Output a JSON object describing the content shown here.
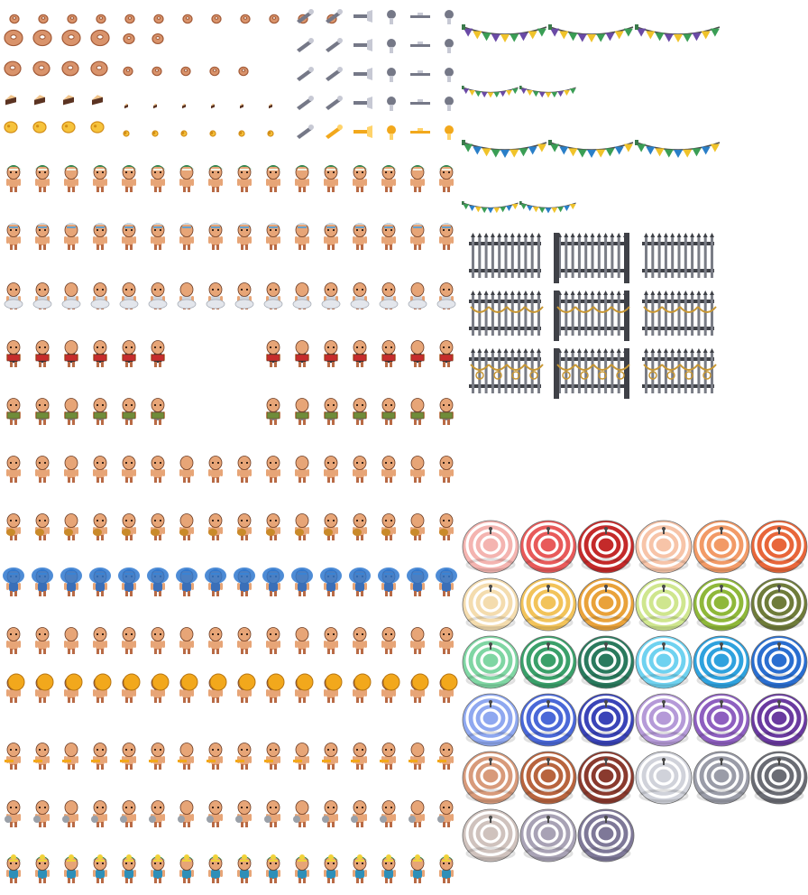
{
  "sheet": {
    "kind": "pixel-art sprite sheet",
    "background": "#ffffff"
  },
  "palette": {
    "skin": "#e7a577",
    "skin_dark": "#b86a45",
    "skin_light": "#f4c39b",
    "outline": "#6b3a22",
    "donut": "#d9936b",
    "donut_dark": "#a25a37",
    "cake_dark": "#5b3322",
    "cake_cream": "#f1c48a",
    "cheese": "#f6c33c",
    "cheese_dark": "#d38e17",
    "instrument_gray": "#757887",
    "instrument_light": "#c7c9d4",
    "brass": "#f2a81c",
    "fence": "#3f4147",
    "fence_light": "#7a7d86",
    "fence_gold": "#c89733",
    "bunting_line": "#4d4d4d"
  },
  "food_rows": [
    {
      "row": "donuts-small",
      "item": "donut"
    },
    {
      "row": "donuts-large",
      "item": "donut"
    },
    {
      "row": "donuts-medium",
      "item": "donut"
    },
    {
      "row": "cake-slices",
      "item": "cake"
    },
    {
      "row": "cheese-rounds",
      "item": "cheese"
    }
  ],
  "character_rows": [
    {
      "row": 1,
      "costume": "feather-headdress",
      "hair": "#2f8a52",
      "accent": "#f3efe2",
      "garment": "#e7a577"
    },
    {
      "row": 2,
      "costume": "white-feather-crown",
      "hair": "#c9e0ee",
      "accent": "#6aa0c8",
      "garment": "#e7a577"
    },
    {
      "row": 3,
      "costume": "silver-skirt",
      "hair": "none",
      "accent": "#e3e6ec",
      "garment": "#cfd4dc"
    },
    {
      "row": 4,
      "costume": "red-vest-accordion",
      "hair": "none",
      "accent": "#c62c2c",
      "garment": "#2c2f3a"
    },
    {
      "row": 5,
      "costume": "grey-accordion",
      "hair": "none",
      "accent": "#6f8c3a",
      "garment": "#8a8f98"
    },
    {
      "row": 6,
      "costume": "plain",
      "hair": "none",
      "accent": "#e7a577",
      "garment": "#e7a577"
    },
    {
      "row": 7,
      "costume": "guitar",
      "hair": "none",
      "accent": "#c98a2a",
      "garment": "#e7a577"
    },
    {
      "row": 8,
      "costume": "blue-feathers",
      "hair": "#2f78cf",
      "accent": "#7cc1f0",
      "garment": "#3b6fb8"
    },
    {
      "row": 9,
      "costume": "plain",
      "hair": "none",
      "accent": "#e7a577",
      "garment": "#e7a577"
    },
    {
      "row": 10,
      "costume": "sousaphone",
      "hair": "none",
      "accent": "#f2a81c",
      "garment": "#e7a577"
    },
    {
      "row": 11,
      "costume": "trumpet",
      "hair": "none",
      "accent": "#f2a81c",
      "garment": "#e7a577"
    },
    {
      "row": 12,
      "costume": "tambourine",
      "hair": "none",
      "accent": "#9aa0a8",
      "garment": "#e7a577"
    },
    {
      "row": 13,
      "costume": "flower-crown",
      "hair": "#3a9a5b",
      "accent": "#f0d23a",
      "garment": "#2e8fb8"
    }
  ],
  "bunting_rows": [
    {
      "flags": [
        "#6a4aa6",
        "#f0c32a",
        "#3a9e55"
      ]
    },
    {
      "flags": [
        "#6a4aa6",
        "#f0c32a",
        "#3a9e55"
      ]
    },
    {
      "flags": [
        "#3a9e55",
        "#2a7fc8",
        "#f0c32a"
      ]
    },
    {
      "flags": [
        "#3a9e55",
        "#2a7fc8",
        "#f0c32a"
      ]
    }
  ],
  "umbrellas": [
    {
      "base": "#f4b4b0",
      "stripe": "#ffffff"
    },
    {
      "base": "#e85a5a",
      "stripe": "#ffffff"
    },
    {
      "base": "#c42a2a",
      "stripe": "#ffffff"
    },
    {
      "base": "#f7c4a8",
      "stripe": "#ffffff"
    },
    {
      "base": "#f29a66",
      "stripe": "#ffffff"
    },
    {
      "base": "#e8663a",
      "stripe": "#ffffff"
    },
    {
      "base": "#f4dcae",
      "stripe": "#ffffff"
    },
    {
      "base": "#f2c35a",
      "stripe": "#ffffff"
    },
    {
      "base": "#e9a23a",
      "stripe": "#ffffff"
    },
    {
      "base": "#cfe68e",
      "stripe": "#ffffff"
    },
    {
      "base": "#8fb83a",
      "stripe": "#ffffff"
    },
    {
      "base": "#6f7c3a",
      "stripe": "#ffffff"
    },
    {
      "base": "#7fd6a3",
      "stripe": "#ffffff"
    },
    {
      "base": "#3aa06a",
      "stripe": "#ffffff"
    },
    {
      "base": "#2a7a5e",
      "stripe": "#ffffff"
    },
    {
      "base": "#6fd2f0",
      "stripe": "#ffffff"
    },
    {
      "base": "#2fa2de",
      "stripe": "#ffffff"
    },
    {
      "base": "#2a6ed0",
      "stripe": "#ffffff"
    },
    {
      "base": "#8fa8f0",
      "stripe": "#ffffff"
    },
    {
      "base": "#4a68d8",
      "stripe": "#ffffff"
    },
    {
      "base": "#3a44b8",
      "stripe": "#ffffff"
    },
    {
      "base": "#b59ad8",
      "stripe": "#ffffff"
    },
    {
      "base": "#8e5fc0",
      "stripe": "#ffffff"
    },
    {
      "base": "#6a3aa0",
      "stripe": "#ffffff"
    },
    {
      "base": "#d89a7a",
      "stripe": "#ffffff"
    },
    {
      "base": "#b8643e",
      "stripe": "#ffffff"
    },
    {
      "base": "#8a3a2e",
      "stripe": "#ffffff"
    },
    {
      "base": "#d0d2da",
      "stripe": "#ffffff"
    },
    {
      "base": "#9a9ca8",
      "stripe": "#ffffff"
    },
    {
      "base": "#6a6c74",
      "stripe": "#ffffff"
    },
    {
      "base": "#cfc2bd",
      "stripe": "#ffffff"
    },
    {
      "base": "#a8a2b5",
      "stripe": "#ffffff"
    },
    {
      "base": "#7e7898",
      "stripe": "#ffffff"
    }
  ],
  "fences": [
    {
      "style": "plain"
    },
    {
      "style": "tall"
    },
    {
      "style": "plain"
    },
    {
      "style": "garland"
    },
    {
      "style": "tall-garland"
    },
    {
      "style": "garland"
    },
    {
      "style": "ring-garland"
    },
    {
      "style": "tall-ring-garland"
    },
    {
      "style": "ring-garland"
    }
  ]
}
